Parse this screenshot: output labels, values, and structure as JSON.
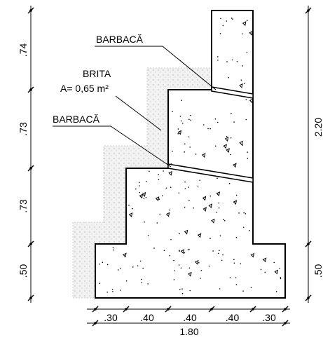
{
  "labels": {
    "barbaca_top": "BARBACĂ",
    "brita": "BRITA",
    "brita_area": "A= 0,65 m²",
    "barbaca_bottom": "BARBACĂ"
  },
  "dimensions": {
    "left": [
      ".74",
      ".73",
      ".73",
      ".50"
    ],
    "right": [
      "2.20",
      ".50"
    ],
    "bottom": [
      ".30",
      ".40",
      ".40",
      ".40",
      ".30"
    ],
    "total": "1.80"
  }
}
